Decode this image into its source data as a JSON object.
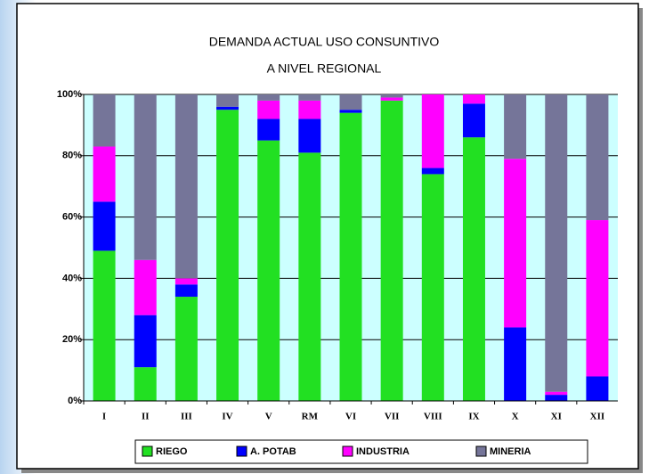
{
  "chart_data": {
    "type": "stacked_bar_100",
    "title": "DEMANDA ACTUAL USO CONSUNTIVO",
    "subtitle": "A NIVEL REGIONAL",
    "categories": [
      "I",
      "II",
      "III",
      "IV",
      "V",
      "RM",
      "VI",
      "VII",
      "VIII",
      "IX",
      "X",
      "XI",
      "XII"
    ],
    "series": [
      {
        "name": "RIEGO",
        "color": "#22e022",
        "values": [
          49,
          11,
          34,
          95,
          85,
          81,
          94,
          98,
          74,
          86,
          0,
          0,
          0
        ]
      },
      {
        "name": "A. POTAB",
        "color": "#0000ff",
        "values": [
          16,
          17,
          4,
          1,
          7,
          11,
          1,
          0,
          2,
          11,
          24,
          2,
          8
        ]
      },
      {
        "name": "INDUSTRIA",
        "color": "#ff00ff",
        "values": [
          18,
          18,
          2,
          0,
          6,
          6,
          0,
          1,
          24,
          3,
          55,
          1,
          51
        ]
      },
      {
        "name": "MINERIA",
        "color": "#757599",
        "values": [
          17,
          54,
          60,
          4,
          2,
          2,
          5,
          1,
          0,
          0,
          21,
          97,
          41
        ]
      }
    ],
    "ylim": [
      0,
      100
    ],
    "yticks": [
      {
        "value": 0,
        "label": "0%"
      },
      {
        "value": 20,
        "label": "20%"
      },
      {
        "value": 40,
        "label": "40%"
      },
      {
        "value": 60,
        "label": "60%"
      },
      {
        "value": 80,
        "label": "80%"
      },
      {
        "value": 100,
        "label": "100%"
      }
    ],
    "grid": true,
    "legend": "bottom",
    "plot_background": "#ccffff"
  }
}
